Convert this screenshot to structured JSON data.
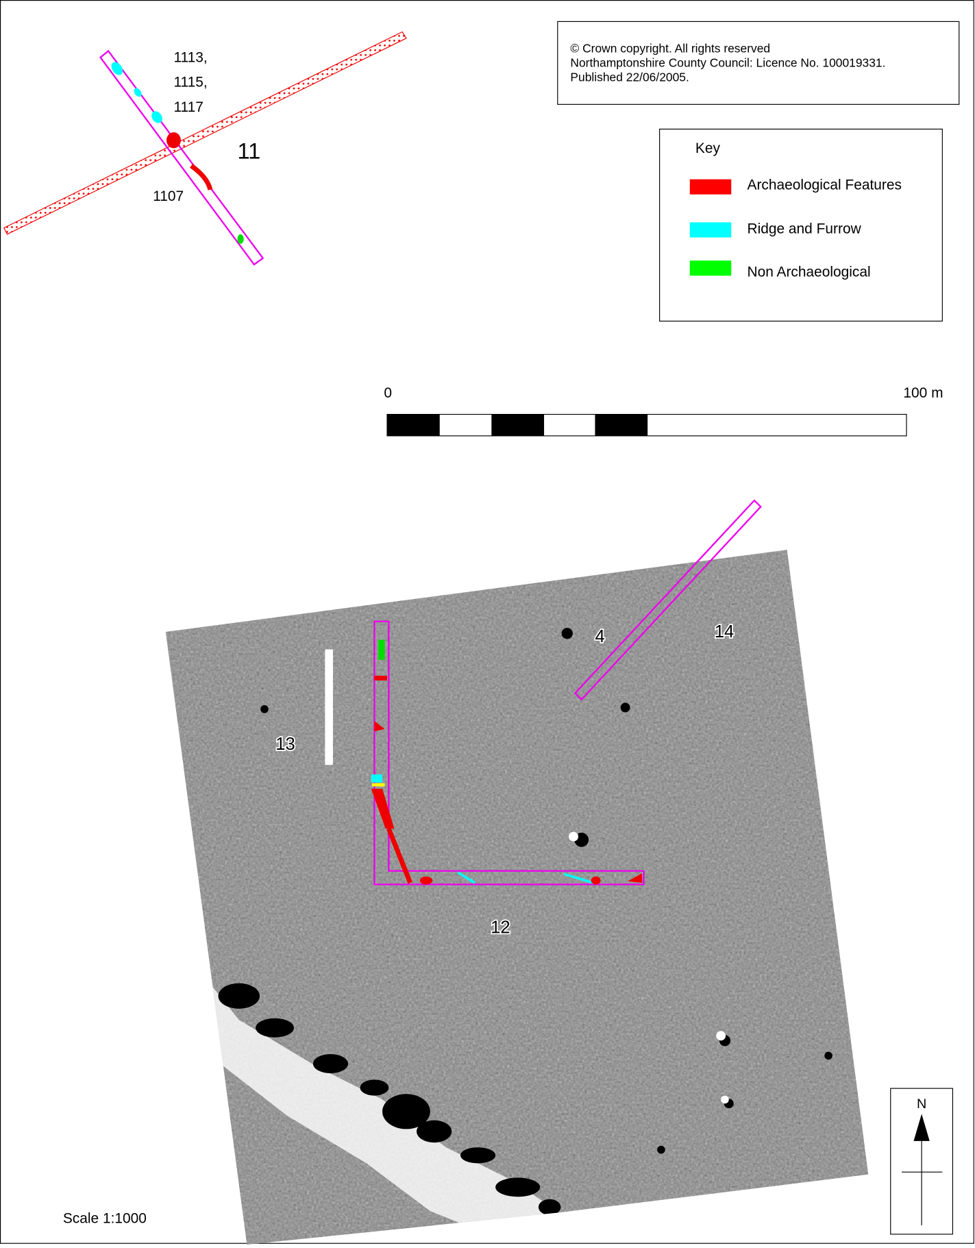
{
  "copyright": {
    "lines": [
      "© Crown copyright. All rights reserved",
      "Northamptonshire County Council: Licence No. 100019331.",
      "Published 22/06/2005."
    ]
  },
  "key": {
    "title": "Key",
    "items": [
      "Archaeological Features",
      "Ridge and Furrow",
      "Non Archaeological"
    ]
  },
  "scale_bar": {
    "start_label": "0",
    "end_label": "100 m"
  },
  "trench_labels": {
    "context_numbers": [
      "1113,",
      "1115,",
      "1117"
    ],
    "trench_11": "11",
    "context_1107": "1107",
    "trench_4": "4",
    "trench_14": "14",
    "trench_13": "13",
    "trench_12": "12"
  },
  "scale_text": "Scale 1:1000",
  "north": "N"
}
